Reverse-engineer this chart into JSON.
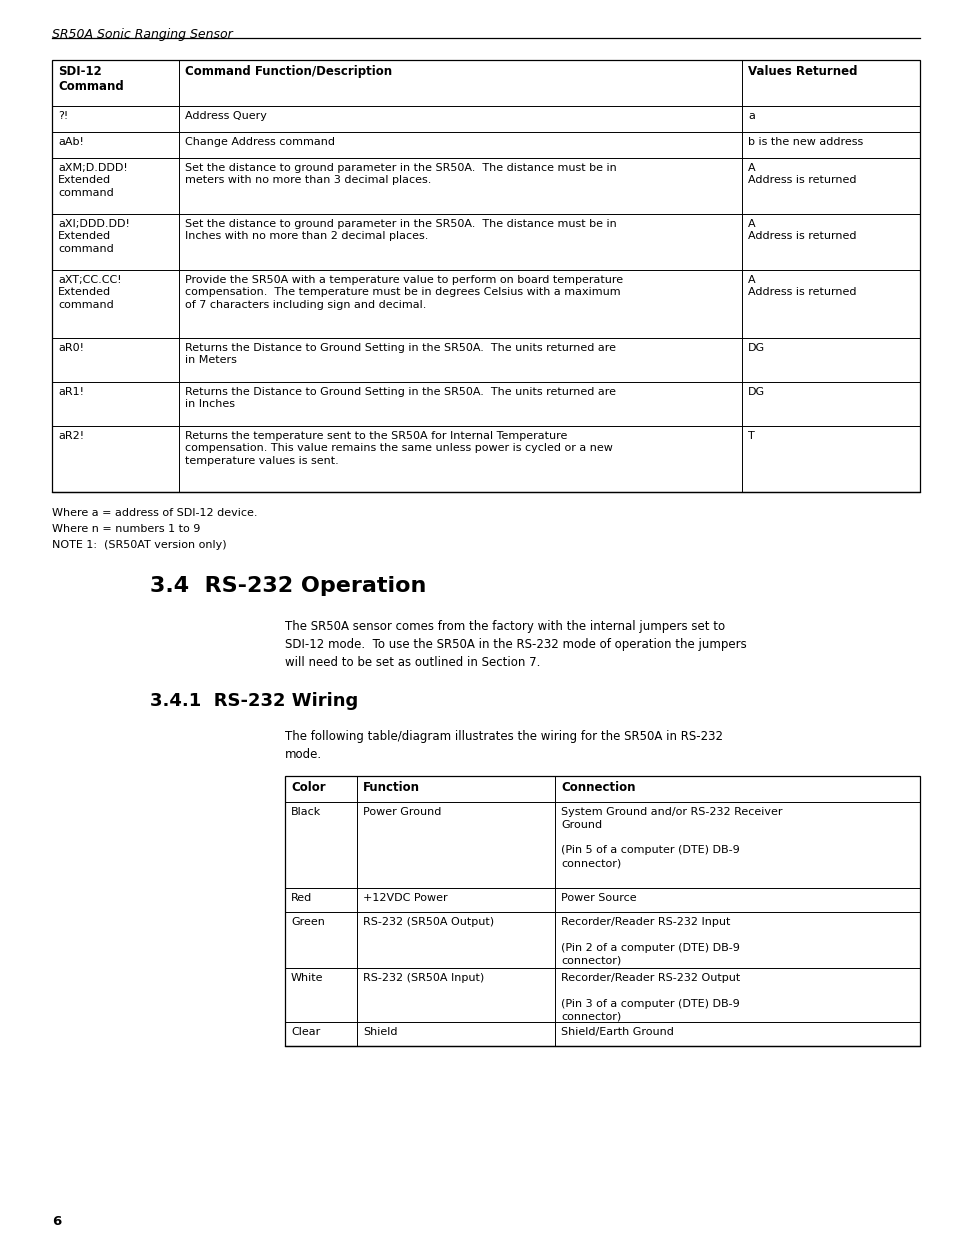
{
  "page_header": "SR50A Sonic Ranging Sensor",
  "page_number": "6",
  "table1_headers": [
    "SDI-12\nCommand",
    "Command Function/Description",
    "Values Returned"
  ],
  "table1_rows": [
    [
      "?!",
      "Address Query",
      "a"
    ],
    [
      "aAb!",
      "Change Address command",
      "b is the new address"
    ],
    [
      "aXM;D.DDD!\nExtended\ncommand",
      "Set the distance to ground parameter in the SR50A.  The distance must be in\nmeters with no more than 3 decimal places.",
      "A\nAddress is returned"
    ],
    [
      "aXI;DDD.DD!\nExtended\ncommand",
      "Set the distance to ground parameter in the SR50A.  The distance must be in\nInches with no more than 2 decimal places.",
      "A\nAddress is returned"
    ],
    [
      "aXT;CC.CC!\nExtended\ncommand",
      "Provide the SR50A with a temperature value to perform on board temperature\ncompensation.  The temperature must be in degrees Celsius with a maximum\nof 7 characters including sign and decimal.",
      "A\nAddress is returned"
    ],
    [
      "aR0!",
      "Returns the Distance to Ground Setting in the SR50A.  The units returned are\nin Meters",
      "DG"
    ],
    [
      "aR1!",
      "Returns the Distance to Ground Setting in the SR50A.  The units returned are\nin Inches",
      "DG"
    ],
    [
      "aR2!",
      "Returns the temperature sent to the SR50A for Internal Temperature\ncompensation. This value remains the same unless power is cycled or a new\ntemperature values is sent.",
      "T"
    ]
  ],
  "notes": [
    "Where a = address of SDI-12 device.",
    "Where n = numbers 1 to 9",
    "NOTE 1:  (SR50AT version only)"
  ],
  "section_title": "3.4  RS-232 Operation",
  "section_body": "The SR50A sensor comes from the factory with the internal jumpers set to\nSDI-12 mode.  To use the SR50A in the RS-232 mode of operation the jumpers\nwill need to be set as outlined in Section 7.",
  "subsection_title": "3.4.1  RS-232 Wiring",
  "subsection_body": "The following table/diagram illustrates the wiring for the SR50A in RS-232\nmode.",
  "table2_headers": [
    "Color",
    "Function",
    "Connection"
  ],
  "table2_rows": [
    [
      "Black",
      "Power Ground",
      "System Ground and/or RS-232 Receiver\nGround\n\n(Pin 5 of a computer (DTE) DB-9\nconnector)"
    ],
    [
      "Red",
      "+12VDC Power",
      "Power Source"
    ],
    [
      "Green",
      "RS-232 (SR50A Output)",
      "Recorder/Reader RS-232 Input\n\n(Pin 2 of a computer (DTE) DB-9\nconnector)"
    ],
    [
      "White",
      "RS-232 (SR50A Input)",
      "Recorder/Reader RS-232 Output\n\n(Pin 3 of a computer (DTE) DB-9\nconnector)"
    ],
    [
      "Clear",
      "Shield",
      "Shield/Earth Ground"
    ]
  ]
}
